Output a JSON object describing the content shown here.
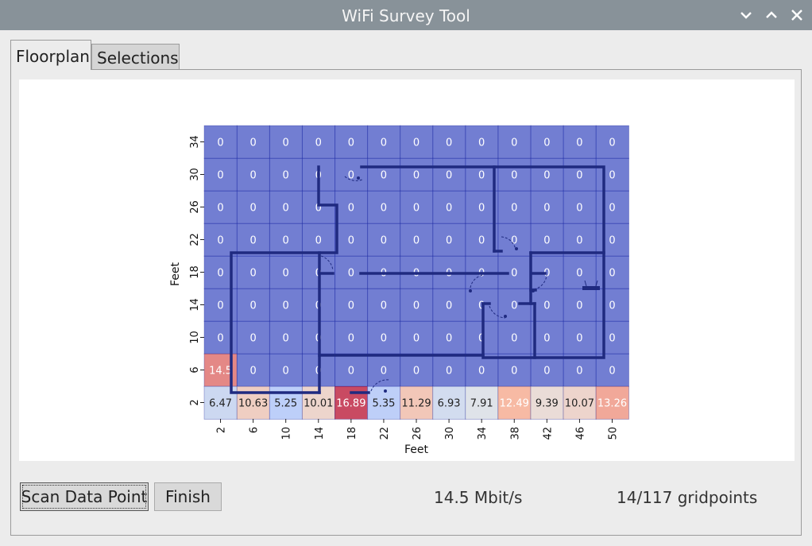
{
  "window": {
    "title": "WiFi Survey Tool",
    "controls": [
      "minimize",
      "maximize",
      "close"
    ]
  },
  "tabs": [
    {
      "label": "Floorplan",
      "active": true
    },
    {
      "label": "Selections",
      "active": false
    }
  ],
  "chart_data": {
    "type": "heatmap",
    "xlabel": "Feet",
    "ylabel": "Feet",
    "x_ticks": [
      "2",
      "6",
      "10",
      "14",
      "18",
      "22",
      "26",
      "30",
      "34",
      "38",
      "42",
      "46",
      "50"
    ],
    "y_ticks": [
      "34",
      "30",
      "26",
      "22",
      "18",
      "14",
      "10",
      "6",
      "2"
    ],
    "values": [
      [
        "0",
        "0",
        "0",
        "0",
        "0",
        "0",
        "0",
        "0",
        "0",
        "0",
        "0",
        "0",
        "0"
      ],
      [
        "0",
        "0",
        "0",
        "0",
        "0",
        "0",
        "0",
        "0",
        "0",
        "0",
        "0",
        "0",
        "0"
      ],
      [
        "0",
        "0",
        "0",
        "0",
        "0",
        "0",
        "0",
        "0",
        "0",
        "0",
        "0",
        "0",
        "0"
      ],
      [
        "0",
        "0",
        "0",
        "0",
        "0",
        "0",
        "0",
        "0",
        "0",
        "0",
        "0",
        "0",
        "0"
      ],
      [
        "0",
        "0",
        "0",
        "0",
        "0",
        "0",
        "0",
        "0",
        "0",
        "0",
        "0",
        "0",
        "0"
      ],
      [
        "0",
        "0",
        "0",
        "0",
        "0",
        "0",
        "0",
        "0",
        "0",
        "0",
        "0",
        "0",
        "0"
      ],
      [
        "0",
        "0",
        "0",
        "0",
        "0",
        "0",
        "0",
        "0",
        "0",
        "0",
        "0",
        "0",
        "0"
      ],
      [
        "14.5",
        "0",
        "0",
        "0",
        "0",
        "0",
        "0",
        "0",
        "0",
        "0",
        "0",
        "0",
        "0"
      ],
      [
        "6.47",
        "10.63",
        "5.25",
        "10.01",
        "16.89",
        "5.35",
        "11.29",
        "6.93",
        "7.91",
        "12.49",
        "9.39",
        "10.07",
        "13.26"
      ]
    ],
    "colormap": "coolwarm",
    "vmin": 0,
    "vmax": 16.89,
    "overlay": "floorplan"
  },
  "buttons": {
    "scan": "Scan Data Point",
    "finish": "Finish"
  },
  "status": {
    "speed": "14.5 Mbit/s",
    "gridpoints": "14/117 gridpoints"
  }
}
